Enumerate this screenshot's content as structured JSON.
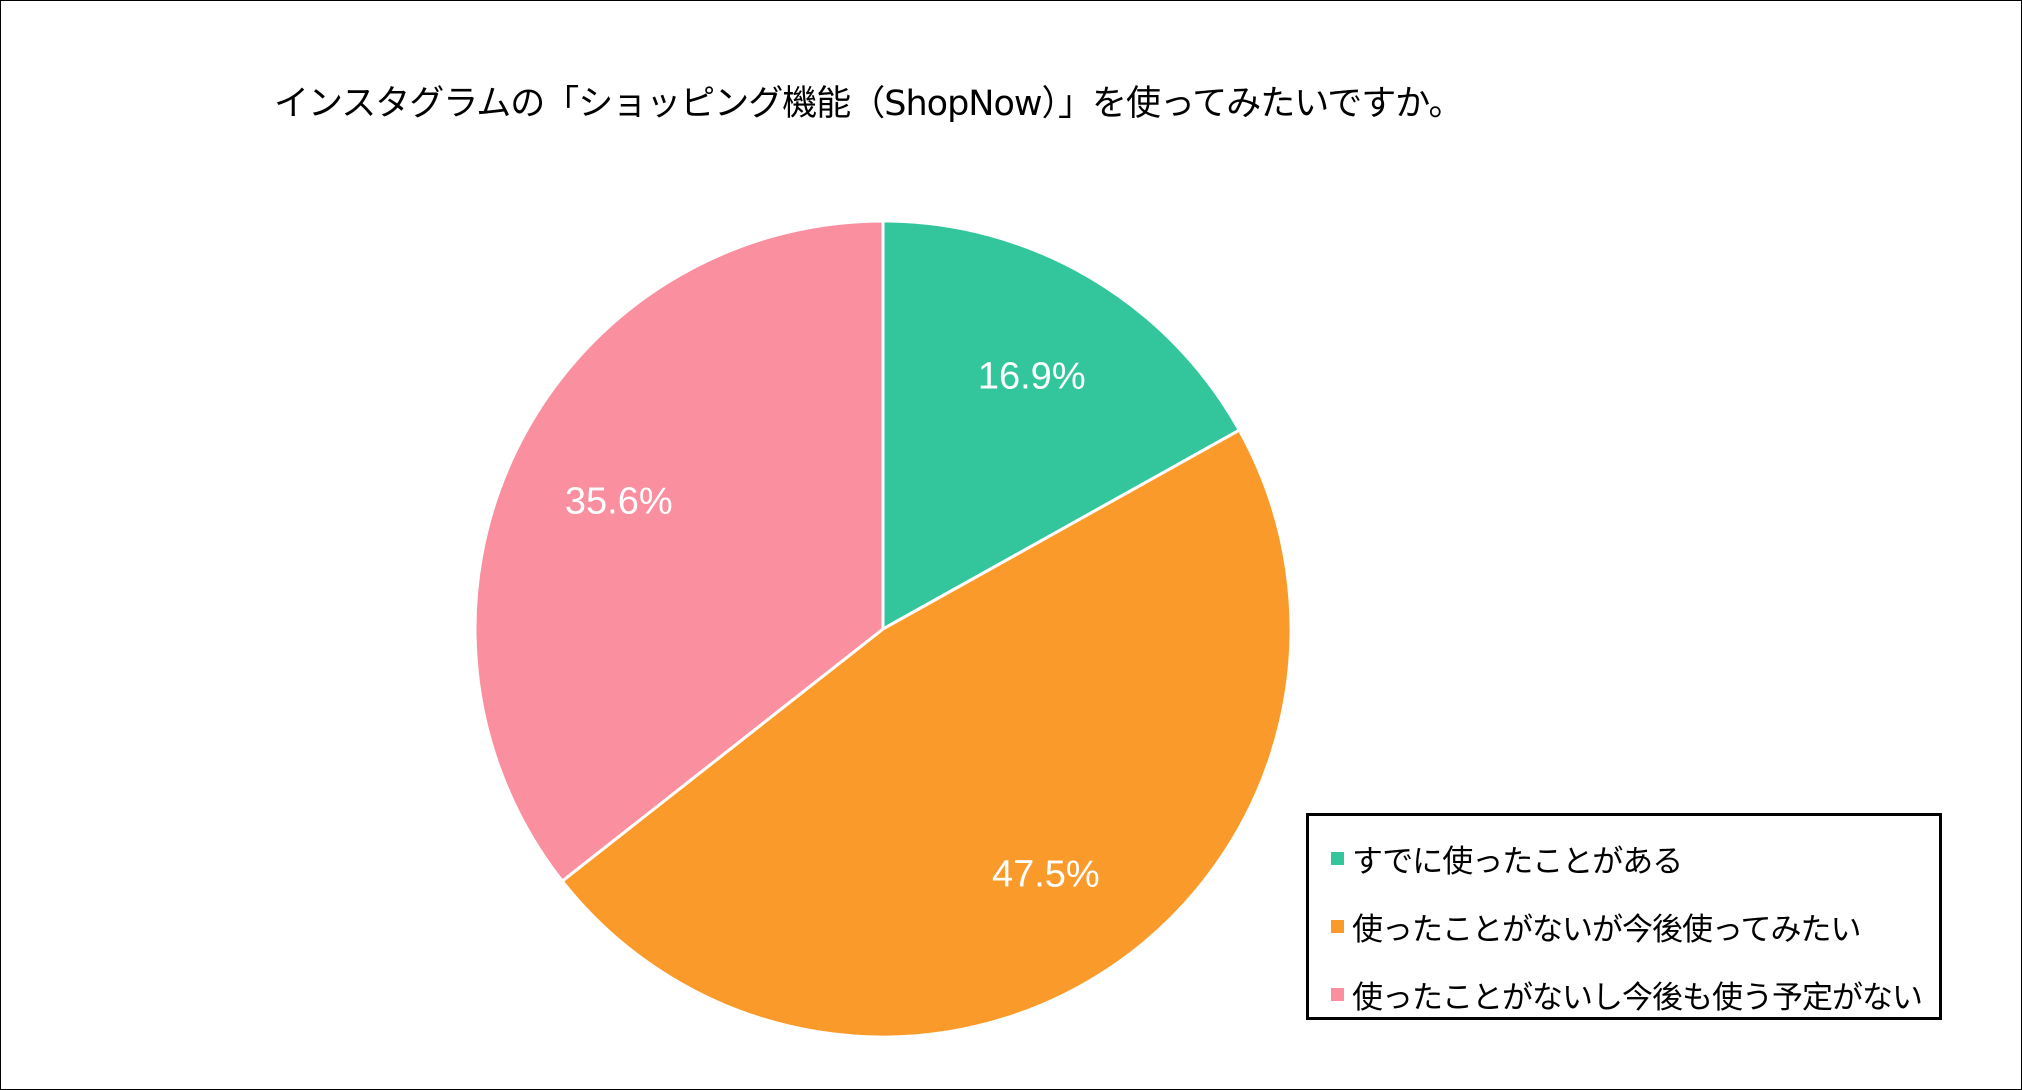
{
  "chart_data": {
    "type": "pie",
    "title": "インスタグラムの「ショッピング機能（ShopNow）」を使ってみたいですか。",
    "slices": [
      {
        "label": "すでに使ったことがある",
        "value": 16.9,
        "data_label": "16.9%",
        "color": "#33C69D"
      },
      {
        "label": "使ったことがないが今後使ってみたい",
        "value": 47.5,
        "data_label": "47.5%",
        "color": "#FA9A2A"
      },
      {
        "label": "使ったことがないし今後も使う予定がない",
        "value": 35.6,
        "data_label": "35.6%",
        "color": "#F98F9F"
      }
    ],
    "start_angle": "top, clockwise",
    "legend_position": "bottom-right"
  }
}
